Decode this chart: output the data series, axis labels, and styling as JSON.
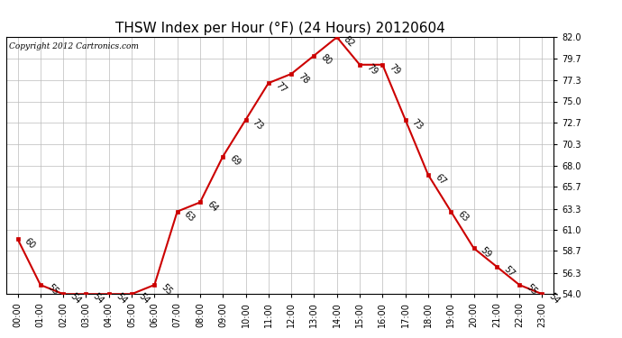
{
  "title": "THSW Index per Hour (°F) (24 Hours) 20120604",
  "copyright": "Copyright 2012 Cartronics.com",
  "hours": [
    "00:00",
    "01:00",
    "02:00",
    "03:00",
    "04:00",
    "05:00",
    "06:00",
    "07:00",
    "08:00",
    "09:00",
    "10:00",
    "11:00",
    "12:00",
    "13:00",
    "14:00",
    "15:00",
    "16:00",
    "17:00",
    "18:00",
    "19:00",
    "20:00",
    "21:00",
    "22:00",
    "23:00"
  ],
  "values": [
    60,
    55,
    54,
    54,
    54,
    54,
    55,
    63,
    64,
    69,
    73,
    77,
    78,
    80,
    82,
    79,
    79,
    73,
    67,
    63,
    59,
    57,
    55,
    54
  ],
  "line_color": "#cc0000",
  "marker_color": "#cc0000",
  "bg_color": "#ffffff",
  "grid_color": "#bbbbbb",
  "ylim_min": 54.0,
  "ylim_max": 82.0,
  "yticks": [
    54.0,
    56.3,
    58.7,
    61.0,
    63.3,
    65.7,
    68.0,
    70.3,
    72.7,
    75.0,
    77.3,
    79.7,
    82.0
  ],
  "title_fontsize": 11,
  "label_fontsize": 7,
  "annotation_fontsize": 7,
  "copyright_fontsize": 6.5
}
